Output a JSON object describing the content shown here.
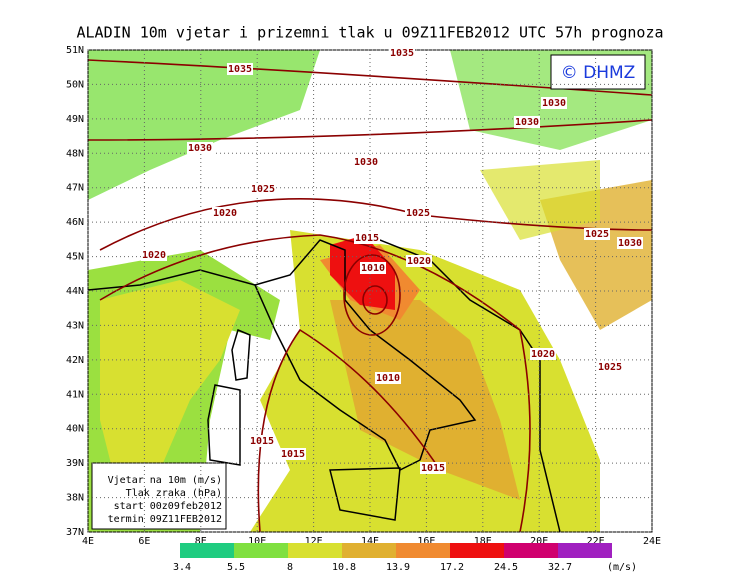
{
  "title": "ALADIN 10m vjetar i prizemni tlak u 09Z11FEB2012 UTC 57h prognoza",
  "watermark": "© DHMZ",
  "latitude_labels": [
    "51N",
    "50N",
    "49N",
    "48N",
    "47N",
    "46N",
    "45N",
    "44N",
    "43N",
    "42N",
    "41N",
    "40N",
    "39N",
    "38N",
    "37N"
  ],
  "longitude_labels": [
    "4E",
    "6E",
    "8E",
    "10E",
    "12E",
    "14E",
    "16E",
    "18E",
    "20E",
    "22E",
    "24E"
  ],
  "isobar_labels": [
    1035,
    1035,
    1030,
    1030,
    1030,
    1030,
    1025,
    1025,
    1020,
    1020,
    1015,
    1010,
    1020,
    1025,
    1030,
    1020,
    1025,
    1010,
    1015,
    1015,
    1015
  ],
  "legend": {
    "lines": [
      "Vjetar na 10m (m/s)",
      "Tlak zraka (hPa)",
      "start 00z09feb2012",
      "termin 09Z11FEB2012"
    ]
  },
  "colorbar": {
    "labels": [
      3.4,
      5.5,
      8,
      10.8,
      13.9,
      17.2,
      24.5,
      32.7
    ],
    "unit": "(m/s)"
  }
}
